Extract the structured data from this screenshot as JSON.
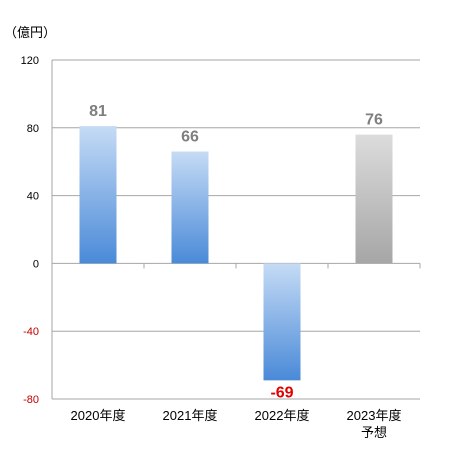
{
  "chart_data": {
    "type": "bar",
    "unit_label": "（億円）",
    "categories": [
      "2020年度",
      "2021年度",
      "2022年度",
      "2023年度\n予想"
    ],
    "values": [
      81,
      66,
      -69,
      76
    ],
    "data_labels": [
      "81",
      "66",
      "-69",
      "76"
    ],
    "forecast_index": 3,
    "ylim": [
      -80,
      120
    ],
    "yticks": [
      120,
      80,
      40,
      0,
      -40,
      -80
    ],
    "grid": true,
    "legend": "none"
  },
  "colors": {
    "bar_top": "#c5dbf5",
    "bar_bottom": "#4a8ad8",
    "forecast_top": "#dcdcdc",
    "forecast_bottom": "#a6a6a6",
    "label_positive": "#7f7f7f",
    "label_negative": "#e00000",
    "tick_positive": "#000000",
    "tick_negative": "#c00000",
    "grid": "#a6a6a6"
  }
}
